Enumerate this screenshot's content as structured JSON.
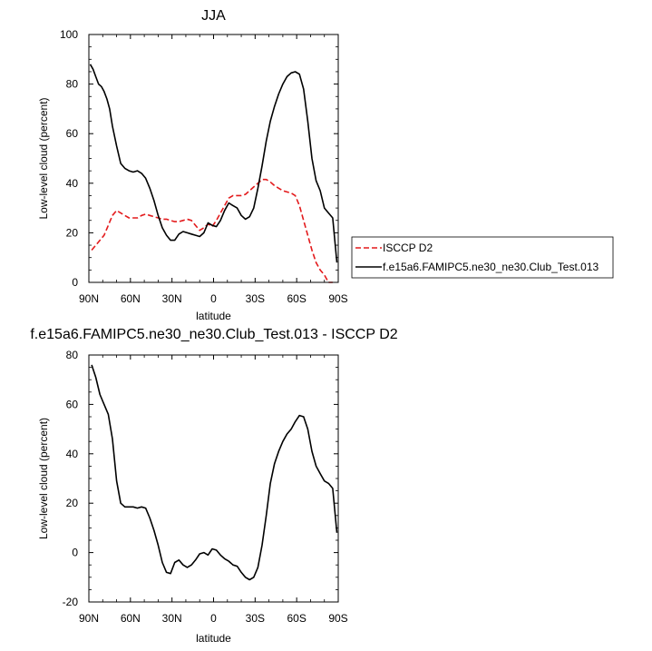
{
  "charts": [
    {
      "type": "line",
      "title": "JJA",
      "xlabel": "latitude",
      "ylabel": "Low-level cloud (percent)",
      "xlim": [
        90,
        -90
      ],
      "ylim": [
        0,
        100
      ],
      "xticks": [
        {
          "value": 90,
          "label": "90N"
        },
        {
          "value": 60,
          "label": "60N"
        },
        {
          "value": 30,
          "label": "30N"
        },
        {
          "value": 0,
          "label": "0"
        },
        {
          "value": -30,
          "label": "30S"
        },
        {
          "value": -60,
          "label": "60S"
        },
        {
          "value": -90,
          "label": "90S"
        }
      ],
      "yticks": [
        {
          "value": 0,
          "label": "0"
        },
        {
          "value": 20,
          "label": "20"
        },
        {
          "value": 40,
          "label": "40"
        },
        {
          "value": 60,
          "label": "60"
        },
        {
          "value": 80,
          "label": "80"
        },
        {
          "value": 100,
          "label": "100"
        }
      ],
      "legend": {
        "position": "right"
      },
      "series": [
        {
          "name": "ISCCP D2",
          "color": "#e31a1c",
          "dash": true,
          "x": [
            88,
            85,
            82,
            79,
            76,
            73,
            70,
            67,
            64,
            61,
            58,
            55,
            52,
            49,
            46,
            43,
            40,
            37,
            34,
            31,
            28,
            25,
            22,
            19,
            16,
            13,
            10,
            7,
            4,
            1,
            -2,
            -5,
            -8,
            -11,
            -14,
            -17,
            -20,
            -23,
            -26,
            -29,
            -32,
            -35,
            -38,
            -41,
            -44,
            -47,
            -50,
            -53,
            -56,
            -59,
            -62,
            -65,
            -68,
            -71,
            -74,
            -77,
            -80,
            -83,
            -86
          ],
          "y": [
            13,
            15,
            17,
            19,
            23,
            27,
            29,
            28,
            27,
            26,
            26,
            26,
            27,
            27.5,
            27,
            26.5,
            26,
            25.5,
            25.5,
            25,
            24.5,
            24.5,
            25,
            25.5,
            25,
            23,
            21,
            22,
            23.5,
            22.5,
            25,
            28,
            31,
            34,
            35,
            35,
            35,
            35.5,
            37,
            38.5,
            40,
            41.5,
            41.5,
            40.5,
            39,
            38,
            37,
            36.5,
            36,
            35,
            31,
            25,
            19,
            13,
            8,
            5,
            3,
            0,
            0
          ]
        },
        {
          "name": "f.e15a6.FAMIPC5.ne30_ne30.Club_Test.013",
          "color": "#000000",
          "dash": false,
          "x": [
            89,
            87,
            85,
            83,
            81,
            79,
            77,
            75,
            73,
            70,
            67,
            64,
            61,
            58,
            55,
            52,
            49,
            46,
            43,
            40,
            37,
            34,
            31,
            28,
            25,
            22,
            19,
            16,
            13,
            10,
            7,
            4,
            1,
            -2,
            -5,
            -8,
            -11,
            -14,
            -17,
            -20,
            -23,
            -26,
            -29,
            -32,
            -35,
            -38,
            -41,
            -44,
            -47,
            -50,
            -53,
            -56,
            -59,
            -62,
            -65,
            -68,
            -71,
            -74,
            -77,
            -80,
            -83,
            -86,
            -89
          ],
          "y": [
            88,
            86,
            83,
            80,
            79,
            77,
            74,
            70,
            63,
            55,
            48,
            46,
            45,
            44.5,
            45,
            44,
            42,
            38,
            33,
            27,
            22,
            19,
            17,
            17,
            19.5,
            20.5,
            20,
            19.5,
            19,
            18.5,
            20,
            24,
            23,
            22.5,
            25,
            29,
            32,
            31,
            30,
            27,
            25.5,
            26.5,
            30,
            38,
            47,
            57,
            65,
            71,
            76,
            80,
            83,
            84.5,
            85,
            84,
            78,
            65,
            50,
            41,
            37,
            30,
            28,
            26,
            8
          ]
        }
      ]
    },
    {
      "type": "line",
      "title": "f.e15a6.FAMIPC5.ne30_ne30.Club_Test.013 - ISCCP D2",
      "xlabel": "latitude",
      "ylabel": "Low-level cloud (percent)",
      "xlim": [
        90,
        -90
      ],
      "ylim": [
        -20,
        80
      ],
      "xticks": [
        {
          "value": 90,
          "label": "90N"
        },
        {
          "value": 60,
          "label": "60N"
        },
        {
          "value": 30,
          "label": "30N"
        },
        {
          "value": 0,
          "label": "0"
        },
        {
          "value": -30,
          "label": "30S"
        },
        {
          "value": -60,
          "label": "60S"
        },
        {
          "value": -90,
          "label": "90S"
        }
      ],
      "yticks": [
        {
          "value": -20,
          "label": "-20"
        },
        {
          "value": 0,
          "label": "0"
        },
        {
          "value": 20,
          "label": "20"
        },
        {
          "value": 40,
          "label": "40"
        },
        {
          "value": 60,
          "label": "60"
        },
        {
          "value": 80,
          "label": "80"
        }
      ],
      "series": [
        {
          "color": "#000000",
          "dash": false,
          "x": [
            88,
            85,
            82,
            79,
            76,
            73,
            70,
            67,
            64,
            61,
            58,
            55,
            52,
            49,
            46,
            43,
            40,
            37,
            34,
            31,
            28,
            25,
            22,
            19,
            16,
            13,
            10,
            7,
            4,
            1,
            -2,
            -5,
            -8,
            -11,
            -14,
            -17,
            -20,
            -23,
            -26,
            -29,
            -32,
            -35,
            -38,
            -41,
            -44,
            -47,
            -50,
            -53,
            -56,
            -59,
            -62,
            -65,
            -68,
            -71,
            -74,
            -77,
            -80,
            -83,
            -86,
            -89
          ],
          "y": [
            76,
            71,
            64,
            60,
            56,
            46,
            29,
            20,
            18.5,
            18.5,
            18.5,
            18,
            18.5,
            18,
            14,
            9,
            3,
            -4,
            -8,
            -8.5,
            -4,
            -3,
            -5,
            -6,
            -5,
            -3,
            -0.5,
            0,
            -1,
            1.5,
            1,
            -1,
            -2.5,
            -3.5,
            -5,
            -5.5,
            -8,
            -10,
            -11,
            -10,
            -6,
            3,
            15,
            28,
            36,
            41,
            45,
            48,
            50,
            53,
            55.5,
            55,
            50,
            41,
            35,
            32,
            29,
            28,
            26,
            8
          ]
        }
      ]
    }
  ]
}
